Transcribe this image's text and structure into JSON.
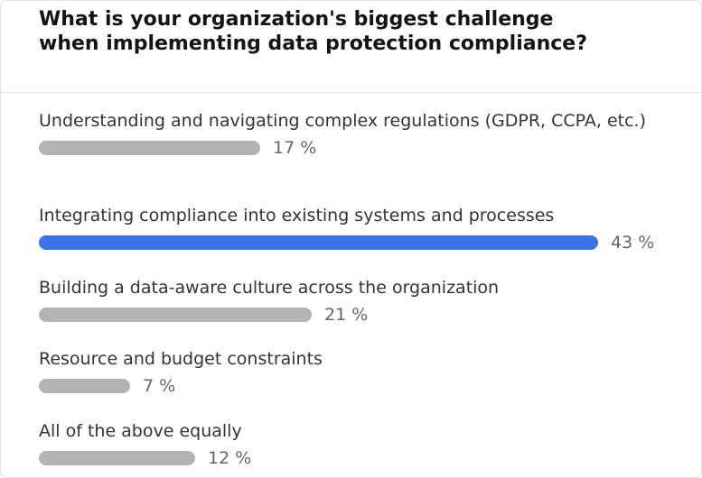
{
  "poll": {
    "question": "What is your organization's biggest challenge when implementing data protection compliance?",
    "options": [
      {
        "label": "Understanding and navigating complex regulations (GDPR, CCPA, etc.)",
        "percent": 17,
        "percent_label": "17 %",
        "selected": false
      },
      {
        "label": "Integrating compliance into existing systems and processes",
        "percent": 43,
        "percent_label": "43 %",
        "selected": true
      },
      {
        "label": "Building a data-aware culture across the organization",
        "percent": 21,
        "percent_label": "21 %",
        "selected": false
      },
      {
        "label": "Resource and budget constraints",
        "percent": 7,
        "percent_label": "7 %",
        "selected": false
      },
      {
        "label": "All of the above equally",
        "percent": 12,
        "percent_label": "12 %",
        "selected": false
      }
    ]
  },
  "colors": {
    "bar_default": "#b3b3b3",
    "bar_selected": "#3b73e8"
  }
}
